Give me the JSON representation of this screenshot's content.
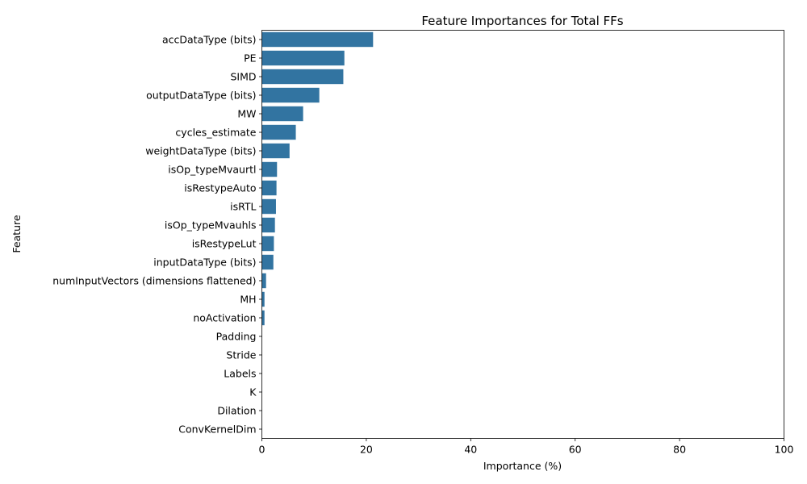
{
  "chart_data": {
    "type": "bar",
    "orientation": "horizontal",
    "title": "Feature Importances for Total FFs",
    "xlabel": "Importance (%)",
    "ylabel": "Feature",
    "xlim": [
      0,
      100
    ],
    "xticks": [
      0,
      20,
      40,
      60,
      80,
      100
    ],
    "grid": false,
    "bar_color": "#3274a1",
    "categories": [
      "accDataType (bits)",
      "PE",
      "SIMD",
      "outputDataType (bits)",
      "MW",
      "cycles_estimate",
      "weightDataType (bits)",
      "isOp_typeMvaurtl",
      "isRestypeAuto",
      "isRTL",
      "isOp_typeMvauhls",
      "isRestypeLut",
      "inputDataType (bits)",
      "numInputVectors (dimensions flattened)",
      "MH",
      "noActivation",
      "Padding",
      "Stride",
      "Labels",
      "K",
      "Dilation",
      "ConvKernelDim"
    ],
    "values": [
      21.3,
      15.8,
      15.6,
      11.0,
      7.9,
      6.5,
      5.3,
      2.9,
      2.8,
      2.7,
      2.5,
      2.3,
      2.2,
      0.8,
      0.5,
      0.5,
      0.0,
      0.0,
      0.0,
      0.0,
      0.0,
      0.0
    ]
  }
}
